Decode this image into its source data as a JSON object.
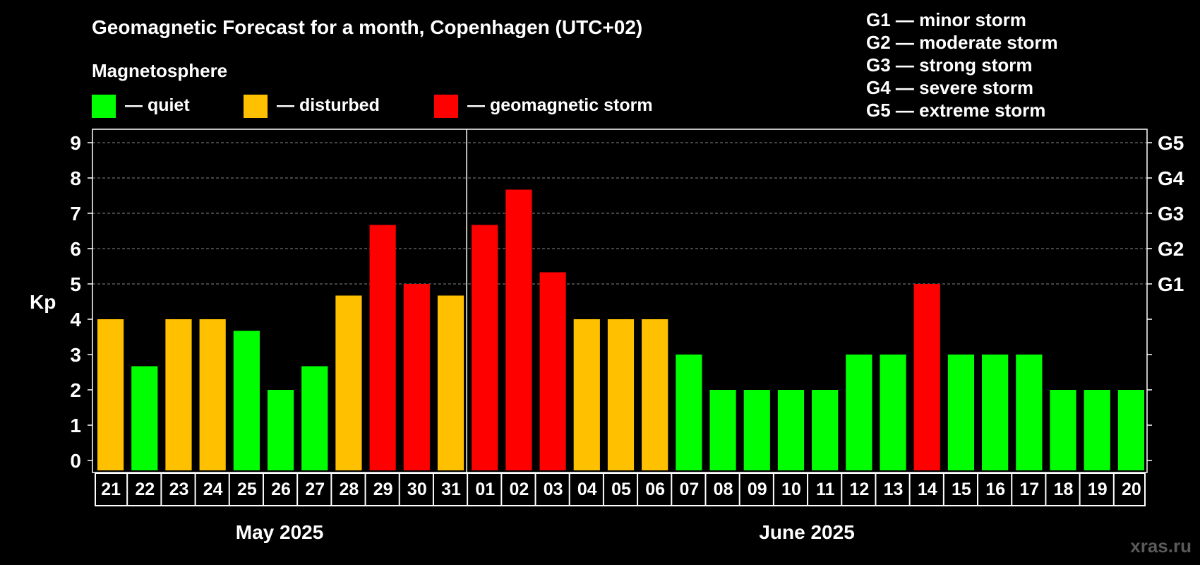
{
  "chart_data": {
    "type": "bar",
    "title": "Geomagnetic Forecast for a month, Copenhagen (UTC+02)",
    "ylabel": "Kp",
    "ylim": [
      0,
      9
    ],
    "yticks": [
      0,
      1,
      2,
      3,
      4,
      5,
      6,
      7,
      8,
      9
    ],
    "right_axis_labels": [
      {
        "kp": 5,
        "label": "G1"
      },
      {
        "kp": 6,
        "label": "G2"
      },
      {
        "kp": 7,
        "label": "G3"
      },
      {
        "kp": 8,
        "label": "G4"
      },
      {
        "kp": 9,
        "label": "G5"
      }
    ],
    "storm_scale": [
      "G1 — minor storm",
      "G2 — moderate storm",
      "G3 — strong storm",
      "G4 — severe storm",
      "G5 — extreme storm"
    ],
    "legend_title": "Magnetosphere",
    "legend": [
      {
        "label": "— quiet",
        "color": "#00ff00"
      },
      {
        "label": "— disturbed",
        "color": "#ffc000"
      },
      {
        "label": "— geomagnetic storm",
        "color": "#ff0000"
      }
    ],
    "categories": [
      "21",
      "22",
      "23",
      "24",
      "25",
      "26",
      "27",
      "28",
      "29",
      "30",
      "31",
      "01",
      "02",
      "03",
      "04",
      "05",
      "06",
      "07",
      "08",
      "09",
      "10",
      "11",
      "12",
      "13",
      "14",
      "15",
      "16",
      "17",
      "18",
      "19",
      "20"
    ],
    "values": [
      4,
      2.67,
      4,
      4,
      3.67,
      2,
      2.67,
      4.67,
      6.67,
      5,
      4.67,
      6.67,
      7.67,
      5.33,
      4,
      4,
      4,
      3,
      2,
      2,
      2,
      2,
      3,
      3,
      5,
      3,
      3,
      3,
      2,
      2,
      2
    ],
    "status": [
      "disturbed",
      "quiet",
      "disturbed",
      "disturbed",
      "quiet",
      "quiet",
      "quiet",
      "disturbed",
      "storm",
      "storm",
      "disturbed",
      "storm",
      "storm",
      "storm",
      "disturbed",
      "disturbed",
      "disturbed",
      "quiet",
      "quiet",
      "quiet",
      "quiet",
      "quiet",
      "quiet",
      "quiet",
      "storm",
      "quiet",
      "quiet",
      "quiet",
      "quiet",
      "quiet",
      "quiet"
    ],
    "months": [
      {
        "label": "May 2025",
        "days": 11
      },
      {
        "label": "June 2025",
        "days": 20
      }
    ],
    "colors": {
      "quiet": "#00ff00",
      "disturbed": "#ffc000",
      "storm": "#ff0000"
    },
    "grid": true,
    "legend_position": "top"
  },
  "watermark": "xras.ru"
}
